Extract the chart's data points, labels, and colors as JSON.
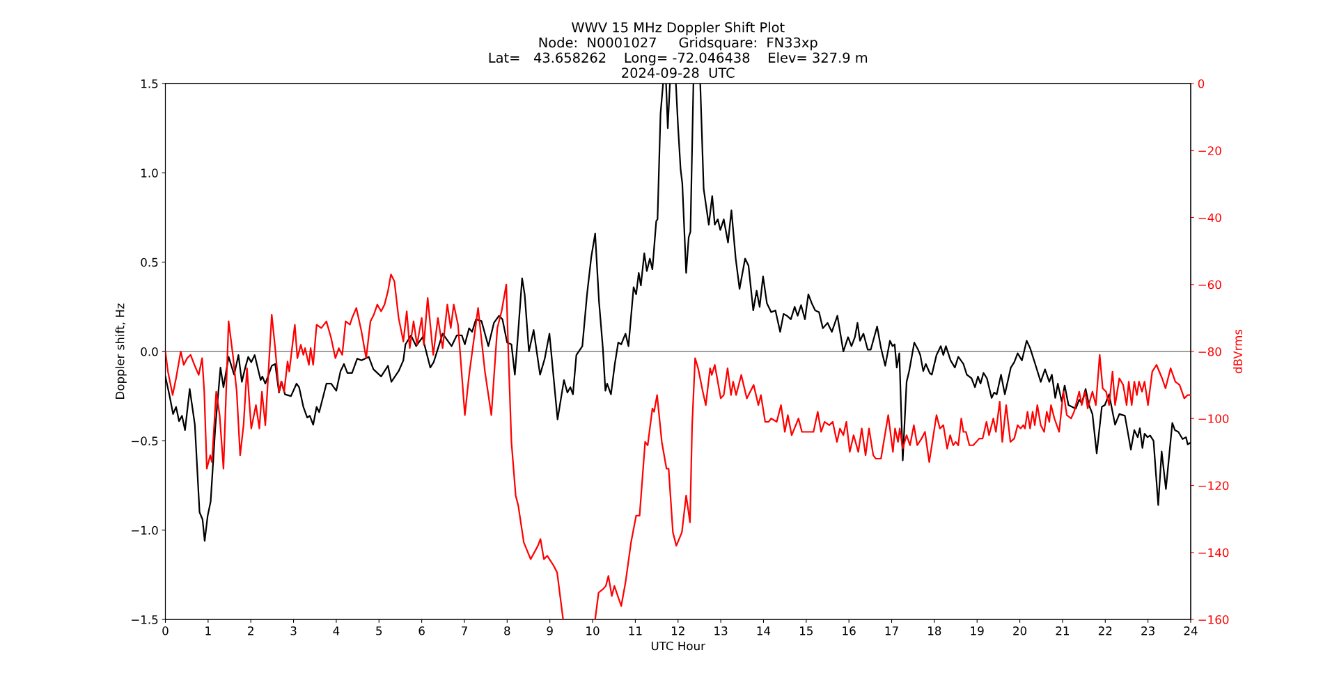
{
  "chart_data": {
    "type": "line",
    "title": "WWV 15 MHz Doppler Shift Plot\nNode:  N0001027     Gridsquare:  FN33xp\nLat=   43.658262    Long= -72.046438    Elev= 327.9 m\n2024-09-28  UTC",
    "xlabel": "UTC Hour",
    "ylabel": "Doppler shift, Hz",
    "y2label": "dBVrms",
    "xlim": [
      0,
      24
    ],
    "xticks": [
      0,
      1,
      2,
      3,
      4,
      5,
      6,
      7,
      8,
      9,
      10,
      11,
      12,
      13,
      14,
      15,
      16,
      17,
      18,
      19,
      20,
      21,
      22,
      23,
      24
    ],
    "ylim": [
      -1.5,
      1.5
    ],
    "yticks": [
      {
        "value": -1.5,
        "label": "−1.5"
      },
      {
        "value": -1,
        "label": "−1.0"
      },
      {
        "value": -0.5,
        "label": "−0.5"
      },
      {
        "value": 0,
        "label": "0.0"
      },
      {
        "value": 0.5,
        "label": "0.5"
      },
      {
        "value": 1,
        "label": "1.0"
      },
      {
        "value": 1.5,
        "label": "1.5"
      }
    ],
    "y2lim": [
      -160,
      0
    ],
    "y2ticks": [
      {
        "value": -160,
        "label": "−160"
      },
      {
        "value": -140,
        "label": "−140"
      },
      {
        "value": -120,
        "label": "−120"
      },
      {
        "value": -100,
        "label": "−100"
      },
      {
        "value": -80,
        "label": "−80"
      },
      {
        "value": -60,
        "label": "−60"
      },
      {
        "value": -40,
        "label": "−40"
      },
      {
        "value": -20,
        "label": "−20"
      },
      0
    ],
    "ref_lines": [
      {
        "axis": "y",
        "value": 0,
        "color": "#808080"
      }
    ],
    "legend": false,
    "grid": false,
    "marker": "none",
    "line_style": "solid",
    "series": [
      {
        "color": "#000000",
        "axis": "y",
        "x": [
          0.0,
          0.1,
          0.18,
          0.25,
          0.32,
          0.39,
          0.46,
          0.57,
          0.69,
          0.8,
          0.87,
          0.92,
          0.99,
          1.06,
          1.17,
          1.29,
          1.36,
          1.48,
          1.61,
          1.71,
          1.79,
          1.87,
          1.94,
          2.01,
          2.09,
          2.23,
          2.27,
          2.34,
          2.49,
          2.57,
          2.66,
          2.72,
          2.8,
          2.94,
          3.07,
          3.13,
          3.23,
          3.32,
          3.38,
          3.46,
          3.54,
          3.6,
          3.77,
          3.88,
          4.0,
          4.1,
          4.18,
          4.26,
          4.37,
          4.49,
          4.59,
          4.76,
          4.87,
          5.05,
          5.21,
          5.29,
          5.46,
          5.57,
          5.62,
          5.75,
          5.87,
          6.02,
          6.2,
          6.28,
          6.49,
          6.7,
          6.82,
          6.94,
          7.01,
          7.11,
          7.18,
          7.27,
          7.4,
          7.56,
          7.69,
          7.81,
          7.89,
          8.0,
          8.1,
          8.18,
          8.24,
          8.35,
          8.41,
          8.51,
          8.62,
          8.77,
          8.88,
          8.99,
          9.18,
          9.33,
          9.41,
          9.48,
          9.54,
          9.62,
          9.76,
          9.87,
          9.97,
          10.06,
          10.15,
          10.24,
          10.3,
          10.34,
          10.43,
          10.52,
          10.6,
          10.67,
          10.77,
          10.84,
          10.96,
          11.02,
          11.08,
          11.13,
          11.21,
          11.27,
          11.34,
          11.4,
          11.49,
          11.52,
          11.59,
          11.65,
          11.68,
          11.72,
          11.76,
          11.81,
          11.88,
          11.95,
          12.0,
          12.06,
          12.1,
          12.19,
          12.25,
          12.29,
          12.36,
          12.44,
          12.52,
          12.6,
          12.72,
          12.8,
          12.86,
          12.93,
          12.99,
          13.07,
          13.17,
          13.25,
          13.35,
          13.44,
          13.57,
          13.65,
          13.76,
          13.84,
          13.91,
          13.99,
          14.08,
          14.18,
          14.28,
          14.39,
          14.47,
          14.55,
          14.64,
          14.73,
          14.8,
          14.88,
          14.97,
          15.05,
          15.13,
          15.21,
          15.3,
          15.39,
          15.5,
          15.6,
          15.73,
          15.87,
          15.98,
          16.06,
          16.14,
          16.2,
          16.26,
          16.34,
          16.44,
          16.51,
          16.66,
          16.75,
          16.85,
          16.96,
          17.02,
          17.07,
          17.12,
          17.18,
          17.26,
          17.35,
          17.41,
          17.53,
          17.62,
          17.67,
          17.74,
          17.8,
          17.89,
          17.94,
          18.05,
          18.15,
          18.21,
          18.27,
          18.38,
          18.48,
          18.56,
          18.68,
          18.76,
          18.87,
          18.95,
          19.02,
          19.08,
          19.15,
          19.23,
          19.34,
          19.4,
          19.46,
          19.56,
          19.65,
          19.79,
          19.87,
          19.95,
          20.05,
          20.16,
          20.24,
          20.36,
          20.49,
          20.59,
          20.69,
          20.75,
          20.83,
          20.89,
          20.98,
          21.05,
          21.14,
          21.31,
          21.39,
          21.45,
          21.54,
          21.62,
          21.7,
          21.8,
          21.92,
          21.99,
          22.09,
          22.23,
          22.33,
          22.46,
          22.6,
          22.68,
          22.76,
          22.81,
          22.87,
          22.92,
          22.99,
          23.05,
          23.13,
          23.24,
          23.32,
          23.42,
          23.57,
          23.63,
          23.71,
          23.81,
          23.89,
          23.93,
          24.0
        ],
        "values": [
          -0.14,
          -0.25,
          -0.35,
          -0.31,
          -0.39,
          -0.36,
          -0.44,
          -0.21,
          -0.41,
          -0.9,
          -0.94,
          -1.06,
          -0.92,
          -0.84,
          -0.42,
          -0.09,
          -0.2,
          -0.03,
          -0.13,
          -0.02,
          -0.17,
          -0.09,
          -0.03,
          -0.06,
          -0.02,
          -0.16,
          -0.14,
          -0.18,
          -0.08,
          -0.07,
          -0.23,
          -0.17,
          -0.24,
          -0.25,
          -0.18,
          -0.2,
          -0.31,
          -0.37,
          -0.36,
          -0.41,
          -0.31,
          -0.34,
          -0.18,
          -0.18,
          -0.22,
          -0.11,
          -0.07,
          -0.12,
          -0.12,
          -0.04,
          -0.05,
          -0.03,
          -0.1,
          -0.14,
          -0.08,
          -0.17,
          -0.11,
          -0.05,
          0.04,
          0.09,
          0.03,
          0.08,
          -0.09,
          -0.06,
          0.1,
          0.03,
          0.09,
          0.09,
          0.04,
          0.13,
          0.11,
          0.18,
          0.17,
          0.03,
          0.16,
          0.2,
          0.18,
          0.05,
          0.04,
          -0.13,
          0.05,
          0.41,
          0.32,
          0.0,
          0.12,
          -0.13,
          -0.04,
          0.1,
          -0.38,
          -0.16,
          -0.23,
          -0.2,
          -0.24,
          -0.02,
          0.03,
          0.32,
          0.53,
          0.66,
          0.28,
          0.02,
          -0.22,
          -0.18,
          -0.24,
          -0.07,
          0.05,
          0.04,
          0.1,
          0.03,
          0.36,
          0.32,
          0.44,
          0.37,
          0.55,
          0.45,
          0.52,
          0.46,
          0.73,
          0.74,
          1.33,
          1.5,
          null,
          1.5,
          1.25,
          1.5,
          null,
          1.5,
          1.26,
          1.02,
          0.94,
          0.44,
          0.64,
          0.67,
          1.5,
          null,
          1.5,
          0.91,
          0.71,
          0.87,
          0.71,
          0.74,
          0.68,
          0.74,
          0.61,
          0.79,
          0.52,
          0.35,
          0.52,
          0.48,
          0.23,
          0.34,
          0.25,
          0.42,
          0.27,
          0.22,
          0.23,
          0.11,
          0.21,
          0.2,
          0.18,
          0.25,
          0.2,
          0.26,
          0.18,
          0.32,
          0.27,
          0.23,
          0.22,
          0.13,
          0.16,
          0.11,
          0.2,
          0.0,
          0.08,
          0.03,
          0.08,
          0.16,
          0.06,
          0.1,
          0.01,
          0.01,
          0.14,
          0.02,
          -0.08,
          0.06,
          0.03,
          0.04,
          -0.09,
          -0.01,
          -0.61,
          -0.17,
          -0.11,
          0.05,
          0.01,
          -0.02,
          -0.11,
          -0.07,
          -0.12,
          -0.13,
          -0.02,
          0.03,
          -0.02,
          0.03,
          -0.05,
          -0.09,
          -0.03,
          -0.07,
          -0.13,
          -0.15,
          -0.2,
          -0.14,
          -0.18,
          -0.12,
          -0.15,
          -0.26,
          -0.23,
          -0.24,
          -0.13,
          -0.24,
          -0.09,
          -0.06,
          -0.01,
          -0.05,
          0.06,
          0.02,
          -0.07,
          -0.17,
          -0.1,
          -0.17,
          -0.13,
          -0.26,
          -0.18,
          -0.28,
          -0.19,
          -0.3,
          -0.32,
          -0.27,
          -0.29,
          -0.21,
          -0.3,
          -0.35,
          -0.57,
          -0.31,
          -0.3,
          -0.24,
          -0.41,
          -0.35,
          -0.36,
          -0.55,
          -0.44,
          -0.48,
          -0.43,
          -0.54,
          -0.46,
          -0.48,
          -0.47,
          -0.5,
          -0.86,
          -0.56,
          -0.77,
          -0.4,
          -0.44,
          -0.45,
          -0.49,
          -0.48,
          -0.52,
          -0.51
        ]
      },
      {
        "color": "#ff0000",
        "axis": "y2",
        "x": [
          0.0,
          0.06,
          0.17,
          0.25,
          0.36,
          0.43,
          0.51,
          0.59,
          0.68,
          0.78,
          0.86,
          0.91,
          0.97,
          1.05,
          1.09,
          1.19,
          1.27,
          1.36,
          1.48,
          1.58,
          1.67,
          1.75,
          1.83,
          1.91,
          2.01,
          2.12,
          2.2,
          2.26,
          2.34,
          2.49,
          2.57,
          2.66,
          2.71,
          2.78,
          2.86,
          2.9,
          3.03,
          3.09,
          3.17,
          3.23,
          3.27,
          3.36,
          3.4,
          3.46,
          3.54,
          3.65,
          3.77,
          3.88,
          3.98,
          4.06,
          4.14,
          4.22,
          4.32,
          4.37,
          4.47,
          4.59,
          4.7,
          4.8,
          4.88,
          4.96,
          5.05,
          5.13,
          5.21,
          5.28,
          5.36,
          5.46,
          5.57,
          5.65,
          5.72,
          5.81,
          5.89,
          6.0,
          6.05,
          6.14,
          6.27,
          6.38,
          6.49,
          6.6,
          6.68,
          6.75,
          6.85,
          7.01,
          7.11,
          7.32,
          7.37,
          7.48,
          7.63,
          7.77,
          7.87,
          7.98,
          8.03,
          8.1,
          8.2,
          8.26,
          8.39,
          8.55,
          8.72,
          8.78,
          8.86,
          8.94,
          9.09,
          9.17,
          9.31,
          9.7,
          10.06,
          10.14,
          10.24,
          10.31,
          10.37,
          10.45,
          10.51,
          10.67,
          10.77,
          10.9,
          11.02,
          11.1,
          11.23,
          11.29,
          11.4,
          11.44,
          11.51,
          11.62,
          11.73,
          11.78,
          11.88,
          11.96,
          12.09,
          12.19,
          12.28,
          12.33,
          12.4,
          12.47,
          12.58,
          12.65,
          12.75,
          12.79,
          12.86,
          13.0,
          13.07,
          13.16,
          13.24,
          13.29,
          13.36,
          13.48,
          13.61,
          13.69,
          13.77,
          13.88,
          13.94,
          14.04,
          14.12,
          14.18,
          14.31,
          14.41,
          14.5,
          14.57,
          14.66,
          14.82,
          14.9,
          15.01,
          15.09,
          15.17,
          15.27,
          15.35,
          15.43,
          15.54,
          15.62,
          15.72,
          15.79,
          15.87,
          15.94,
          16.02,
          16.11,
          16.22,
          16.3,
          16.39,
          16.47,
          16.57,
          16.63,
          16.75,
          16.92,
          17.03,
          17.08,
          17.15,
          17.19,
          17.26,
          17.35,
          17.43,
          17.52,
          17.6,
          17.7,
          17.78,
          17.88,
          18.05,
          18.13,
          18.21,
          18.3,
          18.37,
          18.44,
          18.5,
          18.56,
          18.63,
          18.68,
          18.74,
          18.82,
          18.91,
          19.05,
          19.13,
          19.22,
          19.28,
          19.38,
          19.44,
          19.53,
          19.59,
          19.68,
          19.78,
          19.87,
          19.95,
          20.02,
          20.08,
          20.12,
          20.18,
          20.24,
          20.3,
          20.35,
          20.41,
          20.49,
          20.57,
          20.63,
          20.69,
          20.73,
          20.81,
          20.92,
          21.02,
          21.1,
          21.2,
          21.27,
          21.39,
          21.45,
          21.53,
          21.59,
          21.7,
          21.78,
          21.87,
          21.94,
          22.02,
          22.09,
          22.17,
          22.23,
          22.33,
          22.42,
          22.5,
          22.55,
          22.62,
          22.68,
          22.74,
          22.79,
          22.86,
          22.92,
          23.0,
          23.1,
          23.2,
          23.33,
          23.41,
          23.53,
          23.64,
          23.74,
          23.85,
          23.93,
          24.0
        ],
        "values": [
          -80,
          -86,
          -93,
          -88,
          -80,
          -84,
          -82,
          -81,
          -84,
          -87,
          -82,
          -92,
          -115,
          -111,
          -113,
          -92,
          -99,
          -115,
          -71,
          -81,
          -92,
          -111,
          -102,
          -85,
          -103,
          -96,
          -103,
          -92,
          -102,
          -69,
          -79,
          -92,
          -89,
          -92,
          -83,
          -86,
          -72,
          -82,
          -78,
          -81,
          -79,
          -84,
          -79,
          -84,
          -72,
          -73,
          -71,
          -76,
          -82,
          -79,
          -81,
          -71,
          -72,
          -70,
          -67,
          -74,
          -82,
          -71,
          -69,
          -66,
          -68,
          -66,
          -62,
          -57,
          -59,
          -70,
          -77,
          -68,
          -79,
          -71,
          -78,
          -70,
          -78,
          -64,
          -81,
          -70,
          -79,
          -66,
          -73,
          -66,
          -72,
          -99,
          -87,
          -67,
          -73,
          -86,
          -99,
          -73,
          -68,
          -60,
          -81,
          -107,
          -123,
          -126,
          -137,
          -142,
          -138,
          -136,
          -142,
          -141,
          -144,
          -146,
          -160,
          null,
          -160,
          -152,
          -151,
          -150,
          -147,
          -153,
          -150,
          -156,
          -149,
          -137,
          -129,
          -129,
          -107,
          -108,
          -97,
          -98,
          -93,
          -107,
          -115,
          -115,
          -134,
          -138,
          -134,
          -123,
          -131,
          -102,
          -82,
          -85,
          -92,
          -96,
          -85,
          -87,
          -84,
          -94,
          -93,
          -85,
          -93,
          -89,
          -93,
          -87,
          -94,
          -92,
          -90,
          -96,
          -93,
          -101,
          -101,
          -100,
          -101,
          -96,
          -104,
          -99,
          -105,
          -100,
          -104,
          -104,
          -104,
          -104,
          -98,
          -104,
          -101,
          -102,
          -101,
          -107,
          -103,
          -105,
          -101,
          -110,
          -105,
          -110,
          -103,
          -111,
          -103,
          -111,
          -112,
          -112,
          -99,
          -110,
          -103,
          -107,
          -103,
          -109,
          -105,
          -108,
          -102,
          -108,
          -106,
          -104,
          -113,
          -99,
          -103,
          -102,
          -109,
          -105,
          -108,
          -107,
          -108,
          -100,
          -104,
          -104,
          -108,
          -108,
          -106,
          -106,
          -101,
          -105,
          -100,
          -104,
          -95,
          -107,
          -96,
          -107,
          -106,
          -102,
          -103,
          -102,
          -103,
          -98,
          -103,
          -98,
          -102,
          -96,
          -102,
          -104,
          -98,
          -101,
          -96,
          -100,
          -104,
          -92,
          -99,
          -100,
          -98,
          -92,
          -96,
          -92,
          -97,
          -92,
          -96,
          -81,
          -91,
          -92,
          -96,
          -86,
          -96,
          -88,
          -90,
          -96,
          -89,
          -96,
          -89,
          -93,
          -89,
          -92,
          -89,
          -96,
          -86,
          -84,
          -88,
          -91,
          -85,
          -89,
          -90,
          -94,
          -93,
          -93
        ]
      }
    ]
  }
}
